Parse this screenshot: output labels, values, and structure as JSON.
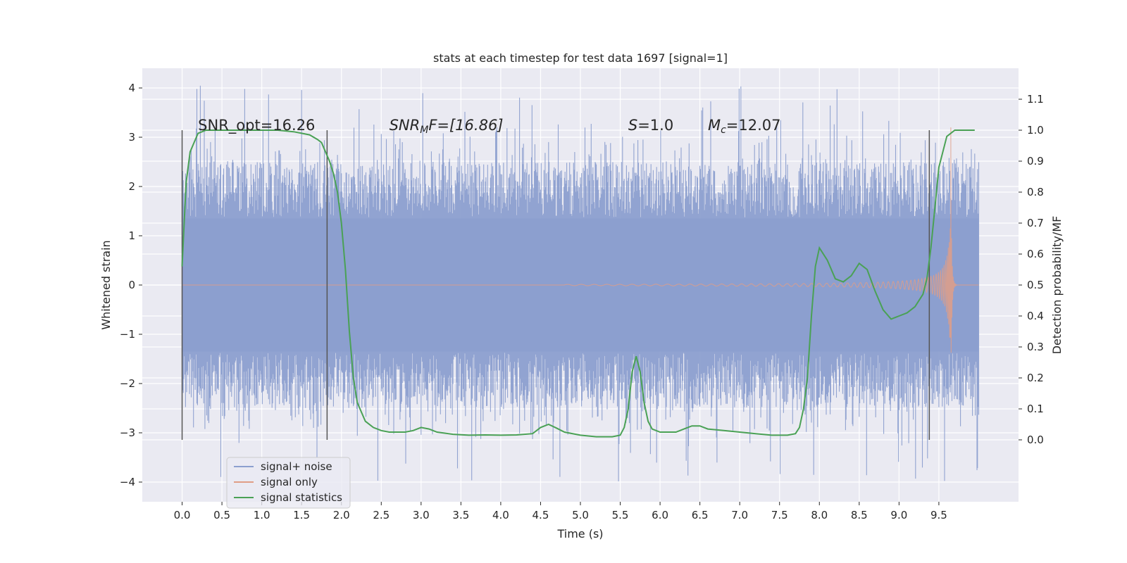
{
  "chart_data": {
    "type": "line",
    "title": "stats at each timestep for test data 1697 [signal=1]",
    "xlabel": "Time (s)",
    "ylabel": "Whitened strain",
    "ylabel_right": "Detection probability/MF",
    "xlim": [
      -0.5,
      10.5
    ],
    "ylim": [
      -4.4,
      4.4
    ],
    "ylim_right": [
      -0.2,
      1.2
    ],
    "grid": true,
    "x_ticks": [
      "0.0",
      "0.5",
      "1.0",
      "1.5",
      "2.0",
      "2.5",
      "3.0",
      "3.5",
      "4.0",
      "4.5",
      "5.0",
      "5.5",
      "6.0",
      "6.5",
      "7.0",
      "7.5",
      "8.0",
      "8.5",
      "9.0",
      "9.5"
    ],
    "y_ticks_left": [
      "4",
      "3",
      "2",
      "1",
      "0",
      "−1",
      "−2",
      "−3",
      "−4"
    ],
    "y_ticks_right": [
      "1.1",
      "1.0",
      "0.9",
      "0.8",
      "0.7",
      "0.6",
      "0.5",
      "0.4",
      "0.3",
      "0.2",
      "0.1",
      "0.0"
    ],
    "annotations": {
      "snr_opt": "SNR_opt=16.26",
      "snr_mf_base": "SNR",
      "snr_mf_sub": "M",
      "snr_mf_rest": "F=[16.86]",
      "s_base": "S",
      "s_rest": "=1.0",
      "mc_base": "M",
      "mc_sub": "c",
      "mc_rest": "=12.07"
    },
    "vlines_x": [
      0.0,
      1.82,
      9.38
    ],
    "legend": {
      "placement": "lower-left",
      "items": [
        "signal+ noise",
        "signal only",
        "signal statistics"
      ]
    },
    "series": [
      {
        "name": "signal+ noise",
        "color": "#8c9fcf",
        "envelope_x": [
          0.0,
          10.0
        ],
        "envelope_low": -2.5,
        "envelope_high": 2.5,
        "extreme_low": -4.0,
        "extreme_high": 4.05
      },
      {
        "name": "signal only",
        "color": "#e09e86",
        "chirp_start_x": 4.8,
        "chirp_peak_x": 9.65,
        "chirp_peak_amp": 3.2
      },
      {
        "name": "signal statistics",
        "color": "#4aa155",
        "axis": "right",
        "x": [
          0.0,
          0.05,
          0.1,
          0.15,
          0.2,
          0.3,
          0.5,
          0.8,
          1.0,
          1.2,
          1.4,
          1.5,
          1.6,
          1.7,
          1.75,
          1.8,
          1.85,
          1.9,
          1.95,
          2.0,
          2.05,
          2.1,
          2.15,
          2.2,
          2.3,
          2.4,
          2.5,
          2.6,
          2.8,
          2.9,
          3.0,
          3.1,
          3.2,
          3.4,
          3.6,
          3.8,
          4.0,
          4.2,
          4.4,
          4.5,
          4.6,
          4.7,
          4.8,
          5.0,
          5.2,
          5.4,
          5.5,
          5.55,
          5.6,
          5.65,
          5.7,
          5.75,
          5.8,
          5.85,
          5.9,
          6.0,
          6.2,
          6.3,
          6.4,
          6.5,
          6.6,
          6.8,
          7.0,
          7.2,
          7.4,
          7.6,
          7.7,
          7.75,
          7.8,
          7.85,
          7.9,
          7.95,
          8.0,
          8.1,
          8.2,
          8.3,
          8.4,
          8.5,
          8.6,
          8.7,
          8.8,
          8.9,
          9.0,
          9.1,
          9.2,
          9.3,
          9.35,
          9.4,
          9.45,
          9.5,
          9.6,
          9.7,
          9.8,
          9.9,
          9.95
        ],
        "y": [
          0.56,
          0.83,
          0.93,
          0.96,
          0.99,
          1.0,
          1.0,
          1.0,
          1.0,
          1.0,
          0.995,
          0.99,
          0.985,
          0.97,
          0.96,
          0.93,
          0.9,
          0.86,
          0.8,
          0.7,
          0.55,
          0.35,
          0.2,
          0.12,
          0.06,
          0.04,
          0.03,
          0.025,
          0.025,
          0.03,
          0.04,
          0.035,
          0.025,
          0.018,
          0.015,
          0.016,
          0.015,
          0.016,
          0.02,
          0.04,
          0.05,
          0.038,
          0.025,
          0.015,
          0.01,
          0.01,
          0.015,
          0.04,
          0.1,
          0.22,
          0.27,
          0.22,
          0.12,
          0.06,
          0.035,
          0.025,
          0.025,
          0.035,
          0.045,
          0.045,
          0.035,
          0.03,
          0.025,
          0.02,
          0.015,
          0.015,
          0.02,
          0.04,
          0.1,
          0.2,
          0.4,
          0.56,
          0.62,
          0.58,
          0.52,
          0.51,
          0.53,
          0.57,
          0.55,
          0.48,
          0.42,
          0.39,
          0.4,
          0.41,
          0.43,
          0.47,
          0.52,
          0.62,
          0.75,
          0.88,
          0.98,
          1.0,
          1.0,
          1.0,
          1.0
        ]
      }
    ]
  }
}
